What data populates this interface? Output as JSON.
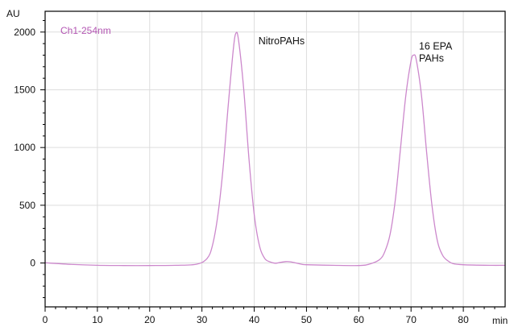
{
  "chart_data": {
    "type": "line",
    "ylabel": "AU",
    "xlabel": "min",
    "xlim": [
      0,
      88
    ],
    "ylim": [
      -380,
      2180
    ],
    "x_ticks": [
      0,
      10,
      20,
      30,
      40,
      50,
      60,
      70,
      80
    ],
    "y_ticks": [
      0,
      500,
      1000,
      1500,
      2000
    ],
    "x_minor_step": 2,
    "y_minor_step": 100,
    "grid": true,
    "colors": {
      "trace": "#cc88cc",
      "series_label": "#b356b3",
      "grid": "#dddddd",
      "axis": "#000000"
    },
    "series": [
      {
        "name": "Ch1-254nm",
        "x": [
          0,
          5,
          10,
          15,
          20,
          25,
          29,
          31,
          32,
          33,
          34,
          35,
          36,
          36.5,
          37,
          38,
          39,
          40,
          41,
          42,
          43,
          44,
          45,
          46,
          47,
          48,
          49,
          50,
          55,
          60,
          62,
          64,
          65,
          66,
          67,
          68,
          69,
          70,
          70.5,
          71,
          72,
          73,
          74,
          75,
          76,
          77,
          78,
          80,
          85,
          88
        ],
        "y": [
          2,
          -12,
          -20,
          -22,
          -22,
          -20,
          -10,
          40,
          150,
          400,
          800,
          1350,
          1850,
          1990,
          1930,
          1500,
          900,
          420,
          150,
          40,
          10,
          -2,
          5,
          12,
          10,
          0,
          -10,
          -15,
          -20,
          -22,
          -10,
          30,
          100,
          250,
          550,
          1000,
          1450,
          1750,
          1800,
          1760,
          1450,
          950,
          500,
          200,
          70,
          20,
          -5,
          -15,
          -20,
          -20
        ]
      }
    ],
    "annotations": [
      {
        "lines": [
          "NitroPAHs"
        ],
        "x": 40.8,
        "y": 1895
      },
      {
        "lines": [
          "16 EPA",
          "PAHs"
        ],
        "x": 71.5,
        "y": 1850
      }
    ]
  }
}
